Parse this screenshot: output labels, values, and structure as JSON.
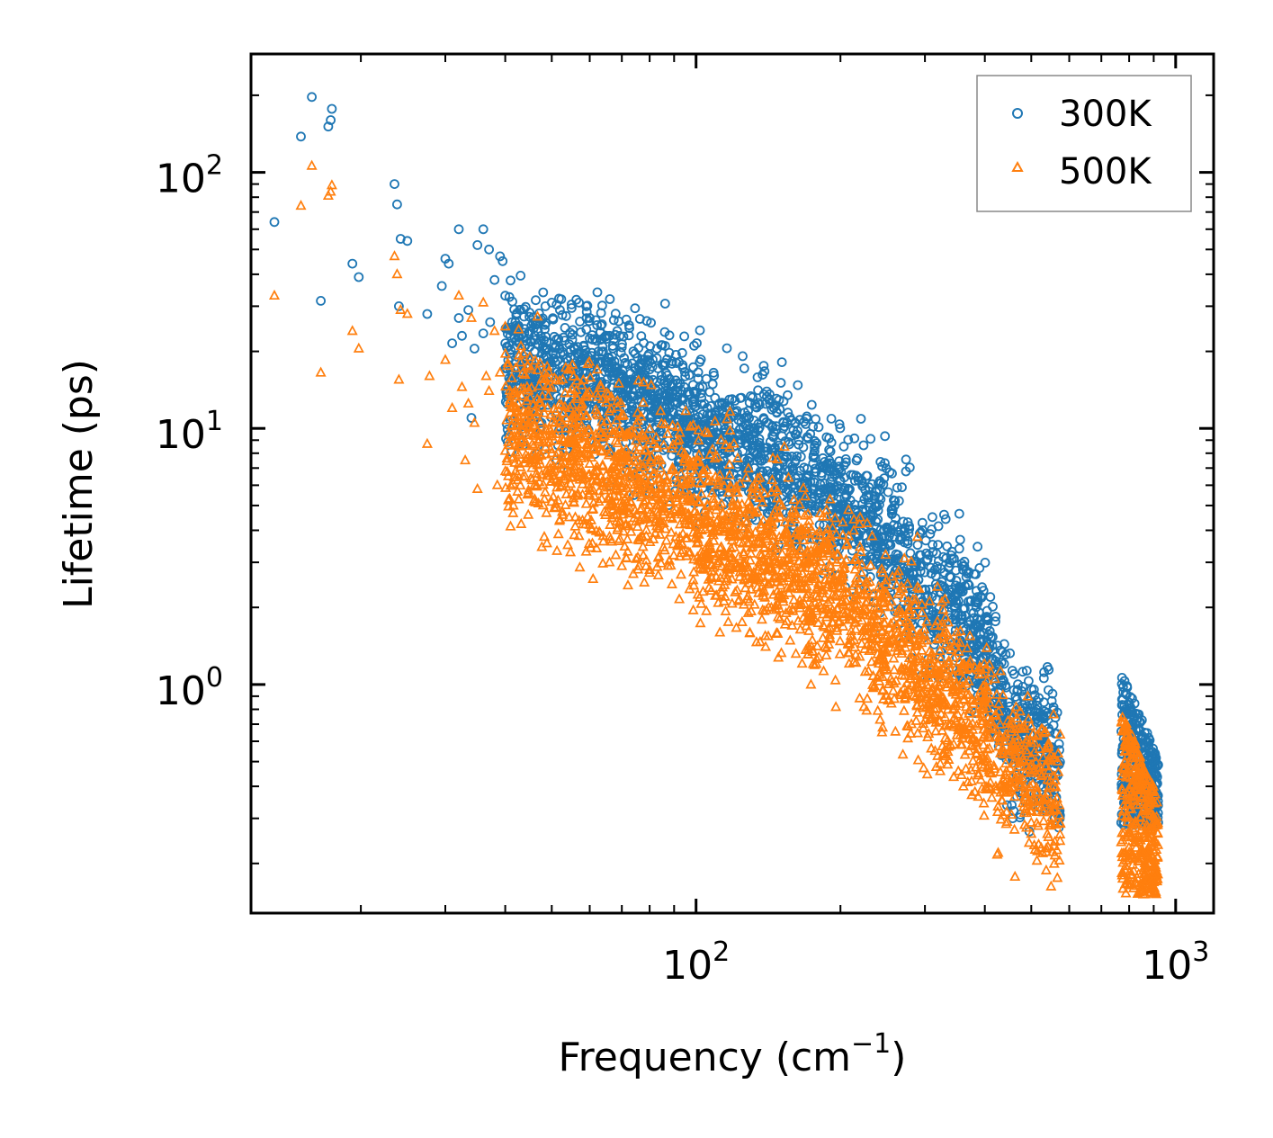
{
  "chart_data": {
    "type": "scatter",
    "title": "",
    "xlabel": "Frequency (cm",
    "xlabel_sup": "−1",
    "xlabel_close": ")",
    "ylabel": "Lifetime (ps)",
    "xscale": "log",
    "yscale": "log",
    "xlim": [
      11.8,
      1200
    ],
    "ylim": [
      0.128,
      290
    ],
    "x_ticks": [
      {
        "base": "10",
        "exp": "2",
        "value": 100
      },
      {
        "base": "10",
        "exp": "3",
        "value": 1000
      }
    ],
    "y_ticks": [
      {
        "base": "10",
        "exp": "0",
        "value": 1
      },
      {
        "base": "10",
        "exp": "1",
        "value": 10
      },
      {
        "base": "10",
        "exp": "2",
        "value": 100
      }
    ],
    "legend_position": "top-right",
    "colors": {
      "s300": "#1f77b4",
      "s500": "#ff7f0e"
    },
    "series": [
      {
        "name": "300K",
        "marker": "circle",
        "color": "#1f77b4",
        "points": [
          [
            13.2,
            64
          ],
          [
            15,
            138
          ],
          [
            15.8,
            197
          ],
          [
            16.5,
            31.5
          ],
          [
            17.1,
            151
          ],
          [
            17.3,
            160
          ],
          [
            17.4,
            177
          ],
          [
            19.2,
            44
          ],
          [
            19.8,
            39
          ],
          [
            23.5,
            90
          ],
          [
            23.8,
            75
          ],
          [
            24,
            30
          ],
          [
            24.2,
            55
          ],
          [
            25,
            54
          ],
          [
            27.5,
            28
          ],
          [
            29.5,
            36
          ],
          [
            30,
            46
          ],
          [
            30.5,
            44
          ],
          [
            31,
            21.5
          ],
          [
            32,
            60
          ],
          [
            32,
            27
          ],
          [
            32.5,
            23
          ],
          [
            33.5,
            29
          ],
          [
            34,
            11
          ],
          [
            34.5,
            20.5
          ],
          [
            35,
            52
          ],
          [
            36,
            60
          ],
          [
            36,
            23.5
          ],
          [
            37,
            50
          ],
          [
            37.2,
            26
          ],
          [
            38,
            38
          ],
          [
            39,
            47
          ],
          [
            39.5,
            45
          ],
          [
            40,
            33
          ],
          [
            40.5,
            24.5
          ],
          [
            41,
            23
          ],
          [
            42,
            26
          ],
          [
            42.5,
            19
          ],
          [
            43,
            29
          ],
          [
            44,
            21
          ],
          [
            45,
            16
          ],
          [
            46,
            17
          ],
          [
            47,
            15
          ],
          [
            47.5,
            22
          ],
          [
            48,
            34
          ],
          [
            48.5,
            30
          ],
          [
            49,
            20.5
          ],
          [
            50,
            31
          ],
          [
            51,
            19.5
          ],
          [
            52,
            29
          ],
          [
            53,
            15
          ],
          [
            54,
            6.8
          ],
          [
            55,
            30.5
          ],
          [
            56,
            18
          ],
          [
            57,
            31
          ],
          [
            58,
            14
          ],
          [
            59,
            30
          ],
          [
            60,
            27
          ],
          [
            61,
            18
          ],
          [
            62,
            22
          ],
          [
            63,
            15
          ],
          [
            64,
            20
          ],
          [
            65,
            13
          ],
          [
            66,
            23
          ],
          [
            67,
            21
          ],
          [
            68,
            11
          ],
          [
            70,
            16
          ],
          [
            72,
            14
          ],
          [
            74,
            20
          ],
          [
            75,
            16
          ],
          [
            77,
            18
          ],
          [
            80,
            17
          ],
          [
            83,
            14
          ],
          [
            86,
            15
          ],
          [
            88,
            12
          ],
          [
            91,
            18
          ],
          [
            94,
            13
          ],
          [
            97,
            11.5
          ],
          [
            104,
            10
          ],
          [
            112,
            9.5
          ],
          [
            120,
            8.5
          ]
        ],
        "trend": [
          [
            40,
            18
          ],
          [
            60,
            15
          ],
          [
            80,
            12.5
          ],
          [
            100,
            10.2
          ],
          [
            150,
            7.2
          ],
          [
            200,
            5.2
          ],
          [
            250,
            3.6
          ],
          [
            300,
            2.4
          ],
          [
            350,
            1.95
          ],
          [
            400,
            1.4
          ],
          [
            430,
            0.95
          ],
          [
            460,
            0.62
          ],
          [
            500,
            0.62
          ],
          [
            540,
            0.55
          ],
          [
            575,
            0.42
          ]
        ],
        "trend_spread": 0.26,
        "cluster": {
          "x_range": [
            770,
            920
          ],
          "y_range": [
            0.28,
            1.12
          ]
        },
        "extra_points": [
          [
            340,
            3.2
          ],
          [
            345,
            3.1
          ],
          [
            360,
            2.9
          ],
          [
            380,
            2.7
          ],
          [
            390,
            2.85
          ],
          [
            460,
            0.95
          ],
          [
            480,
            0.98
          ]
        ]
      },
      {
        "name": "500K",
        "marker": "triangle",
        "color": "#ff7f0e",
        "points": [
          [
            13.2,
            33
          ],
          [
            15,
            74
          ],
          [
            15.8,
            106
          ],
          [
            16.5,
            16.5
          ],
          [
            17.1,
            81
          ],
          [
            17.3,
            84
          ],
          [
            17.4,
            89
          ],
          [
            19.2,
            24
          ],
          [
            19.8,
            20.5
          ],
          [
            23.5,
            47
          ],
          [
            23.8,
            40
          ],
          [
            24,
            15.5
          ],
          [
            24.2,
            29
          ],
          [
            25,
            28
          ],
          [
            27.5,
            8.7
          ],
          [
            27.8,
            16
          ],
          [
            30,
            18.5
          ],
          [
            31,
            12
          ],
          [
            32,
            33
          ],
          [
            32.5,
            14.5
          ],
          [
            33,
            7.5
          ],
          [
            33.5,
            12.5
          ],
          [
            34,
            27
          ],
          [
            34.5,
            10.5
          ],
          [
            35,
            5.8
          ],
          [
            36,
            31
          ],
          [
            36.5,
            16
          ],
          [
            37,
            14
          ],
          [
            38,
            24
          ],
          [
            38.5,
            6
          ],
          [
            39,
            16.5
          ],
          [
            40,
            25
          ],
          [
            40.5,
            18
          ],
          [
            41,
            11.5
          ],
          [
            42,
            14
          ],
          [
            43,
            8.5
          ],
          [
            44,
            6.5
          ],
          [
            45,
            10.5
          ],
          [
            46,
            6
          ],
          [
            47,
            7.5
          ],
          [
            48,
            5
          ],
          [
            49,
            12
          ],
          [
            50,
            8
          ],
          [
            51,
            9.5
          ],
          [
            52,
            4.4
          ],
          [
            53,
            7
          ],
          [
            54,
            3.5
          ],
          [
            55,
            6.4
          ],
          [
            56,
            4.5
          ],
          [
            57,
            3.8
          ],
          [
            58,
            5.5
          ],
          [
            59,
            3.3
          ],
          [
            60,
            4.2
          ],
          [
            62,
            3.4
          ],
          [
            64,
            3.8
          ],
          [
            66,
            3
          ],
          [
            68,
            3.2
          ],
          [
            70,
            2.9
          ],
          [
            72,
            3.3
          ],
          [
            74,
            2.7
          ],
          [
            76,
            2.9
          ],
          [
            78,
            2.5
          ],
          [
            80,
            2.8
          ]
        ],
        "trend": [
          [
            40,
            10
          ],
          [
            60,
            7.5
          ],
          [
            80,
            5.8
          ],
          [
            100,
            4.6
          ],
          [
            150,
            3.1
          ],
          [
            200,
            2.2
          ],
          [
            250,
            1.55
          ],
          [
            300,
            1.1
          ],
          [
            350,
            0.85
          ],
          [
            400,
            0.65
          ],
          [
            450,
            0.45
          ],
          [
            500,
            0.42
          ],
          [
            550,
            0.34
          ],
          [
            575,
            0.28
          ]
        ],
        "trend_spread": 0.3,
        "cluster": {
          "x_range": [
            770,
            920
          ],
          "y_range": [
            0.15,
            0.8
          ]
        },
        "extra_points": [
          [
            250,
            1.55
          ],
          [
            300,
            1.2
          ],
          [
            350,
            1
          ],
          [
            400,
            0.9
          ],
          [
            420,
            1.05
          ],
          [
            470,
            0.58
          ],
          [
            500,
            0.52
          ]
        ]
      }
    ]
  }
}
